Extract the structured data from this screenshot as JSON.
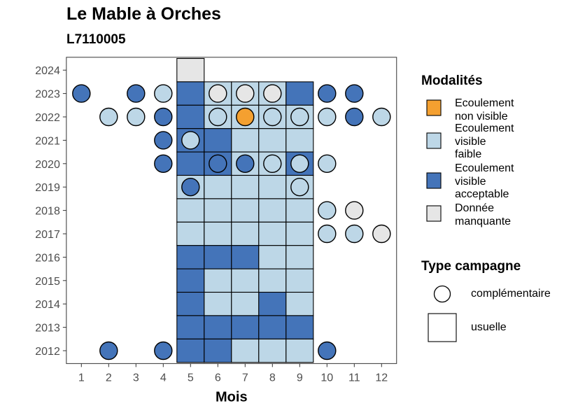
{
  "title": "Le Mable à Orches",
  "subtitle": "L7110005",
  "colors": {
    "non_visible": "#F4A030",
    "faible": "#BDD7E7",
    "acceptable": "#4474B9",
    "manquante": "#E6E6E6",
    "border": "#000000",
    "panel_border": "#333333"
  },
  "chart_data": {
    "type": "heatmap",
    "xlabel": "Mois",
    "ylabel": "",
    "x_ticks": [
      1,
      2,
      3,
      4,
      5,
      6,
      7,
      8,
      9,
      10,
      11,
      12
    ],
    "y_ticks": [
      2012,
      2013,
      2014,
      2015,
      2016,
      2017,
      2018,
      2019,
      2020,
      2021,
      2022,
      2023,
      2024
    ],
    "xlim": [
      0.45,
      12.55
    ],
    "ylim": [
      2011.45,
      2024.55
    ],
    "grid": false,
    "legend_position": "right",
    "legend": {
      "modalites_title": "Modalités",
      "modalites": [
        {
          "key": "non_visible",
          "label_lines": [
            "Ecoulement",
            "non visible"
          ]
        },
        {
          "key": "faible",
          "label_lines": [
            "Ecoulement",
            "visible",
            "faible"
          ]
        },
        {
          "key": "acceptable",
          "label_lines": [
            "Ecoulement",
            "visible",
            "acceptable"
          ]
        },
        {
          "key": "manquante",
          "label_lines": [
            "Donnée",
            "manquante"
          ]
        }
      ],
      "campagne_title": "Type campagne",
      "campagnes": [
        {
          "shape": "circle",
          "label": "complémentaire"
        },
        {
          "shape": "square",
          "label": "usuelle"
        }
      ]
    },
    "usuelle": [
      {
        "year": 2024,
        "month": 5,
        "value": "manquante"
      },
      {
        "year": 2023,
        "month": 5,
        "value": "acceptable"
      },
      {
        "year": 2023,
        "month": 6,
        "value": "faible"
      },
      {
        "year": 2023,
        "month": 7,
        "value": "faible"
      },
      {
        "year": 2023,
        "month": 8,
        "value": "faible"
      },
      {
        "year": 2023,
        "month": 9,
        "value": "acceptable"
      },
      {
        "year": 2022,
        "month": 5,
        "value": "acceptable"
      },
      {
        "year": 2022,
        "month": 6,
        "value": "faible"
      },
      {
        "year": 2022,
        "month": 7,
        "value": "faible"
      },
      {
        "year": 2022,
        "month": 8,
        "value": "faible"
      },
      {
        "year": 2022,
        "month": 9,
        "value": "faible"
      },
      {
        "year": 2021,
        "month": 5,
        "value": "acceptable"
      },
      {
        "year": 2021,
        "month": 6,
        "value": "acceptable"
      },
      {
        "year": 2021,
        "month": 7,
        "value": "faible"
      },
      {
        "year": 2021,
        "month": 8,
        "value": "faible"
      },
      {
        "year": 2021,
        "month": 9,
        "value": "faible"
      },
      {
        "year": 2020,
        "month": 5,
        "value": "acceptable"
      },
      {
        "year": 2020,
        "month": 6,
        "value": "acceptable"
      },
      {
        "year": 2020,
        "month": 7,
        "value": "faible"
      },
      {
        "year": 2020,
        "month": 8,
        "value": "faible"
      },
      {
        "year": 2020,
        "month": 9,
        "value": "acceptable"
      },
      {
        "year": 2019,
        "month": 5,
        "value": "faible"
      },
      {
        "year": 2019,
        "month": 6,
        "value": "faible"
      },
      {
        "year": 2019,
        "month": 7,
        "value": "faible"
      },
      {
        "year": 2019,
        "month": 8,
        "value": "faible"
      },
      {
        "year": 2019,
        "month": 9,
        "value": "faible"
      },
      {
        "year": 2018,
        "month": 5,
        "value": "faible"
      },
      {
        "year": 2018,
        "month": 6,
        "value": "faible"
      },
      {
        "year": 2018,
        "month": 7,
        "value": "faible"
      },
      {
        "year": 2018,
        "month": 8,
        "value": "faible"
      },
      {
        "year": 2018,
        "month": 9,
        "value": "faible"
      },
      {
        "year": 2017,
        "month": 5,
        "value": "faible"
      },
      {
        "year": 2017,
        "month": 6,
        "value": "faible"
      },
      {
        "year": 2017,
        "month": 7,
        "value": "faible"
      },
      {
        "year": 2017,
        "month": 8,
        "value": "faible"
      },
      {
        "year": 2017,
        "month": 9,
        "value": "faible"
      },
      {
        "year": 2016,
        "month": 5,
        "value": "acceptable"
      },
      {
        "year": 2016,
        "month": 6,
        "value": "acceptable"
      },
      {
        "year": 2016,
        "month": 7,
        "value": "acceptable"
      },
      {
        "year": 2016,
        "month": 8,
        "value": "faible"
      },
      {
        "year": 2016,
        "month": 9,
        "value": "faible"
      },
      {
        "year": 2015,
        "month": 5,
        "value": "acceptable"
      },
      {
        "year": 2015,
        "month": 6,
        "value": "faible"
      },
      {
        "year": 2015,
        "month": 7,
        "value": "faible"
      },
      {
        "year": 2015,
        "month": 8,
        "value": "faible"
      },
      {
        "year": 2015,
        "month": 9,
        "value": "faible"
      },
      {
        "year": 2014,
        "month": 5,
        "value": "acceptable"
      },
      {
        "year": 2014,
        "month": 6,
        "value": "faible"
      },
      {
        "year": 2014,
        "month": 7,
        "value": "faible"
      },
      {
        "year": 2014,
        "month": 8,
        "value": "acceptable"
      },
      {
        "year": 2014,
        "month": 9,
        "value": "faible"
      },
      {
        "year": 2013,
        "month": 5,
        "value": "acceptable"
      },
      {
        "year": 2013,
        "month": 6,
        "value": "acceptable"
      },
      {
        "year": 2013,
        "month": 7,
        "value": "acceptable"
      },
      {
        "year": 2013,
        "month": 8,
        "value": "acceptable"
      },
      {
        "year": 2013,
        "month": 9,
        "value": "acceptable"
      },
      {
        "year": 2012,
        "month": 5,
        "value": "acceptable"
      },
      {
        "year": 2012,
        "month": 6,
        "value": "acceptable"
      },
      {
        "year": 2012,
        "month": 7,
        "value": "faible"
      },
      {
        "year": 2012,
        "month": 8,
        "value": "faible"
      },
      {
        "year": 2012,
        "month": 9,
        "value": "faible"
      }
    ],
    "complementaire": [
      {
        "year": 2023,
        "month": 1,
        "value": "acceptable"
      },
      {
        "year": 2023,
        "month": 3,
        "value": "acceptable"
      },
      {
        "year": 2023,
        "month": 4,
        "value": "faible"
      },
      {
        "year": 2023,
        "month": 6,
        "value": "manquante"
      },
      {
        "year": 2023,
        "month": 7,
        "value": "manquante"
      },
      {
        "year": 2023,
        "month": 8,
        "value": "manquante"
      },
      {
        "year": 2023,
        "month": 10,
        "value": "acceptable"
      },
      {
        "year": 2023,
        "month": 11,
        "value": "acceptable"
      },
      {
        "year": 2022,
        "month": 2,
        "value": "faible"
      },
      {
        "year": 2022,
        "month": 3,
        "value": "faible"
      },
      {
        "year": 2022,
        "month": 4,
        "value": "acceptable"
      },
      {
        "year": 2022,
        "month": 6,
        "value": "faible"
      },
      {
        "year": 2022,
        "month": 7,
        "value": "non_visible"
      },
      {
        "year": 2022,
        "month": 8,
        "value": "faible"
      },
      {
        "year": 2022,
        "month": 9,
        "value": "faible"
      },
      {
        "year": 2022,
        "month": 10,
        "value": "faible"
      },
      {
        "year": 2022,
        "month": 11,
        "value": "acceptable"
      },
      {
        "year": 2022,
        "month": 12,
        "value": "faible"
      },
      {
        "year": 2021,
        "month": 4,
        "value": "acceptable"
      },
      {
        "year": 2021,
        "month": 5,
        "value": "faible"
      },
      {
        "year": 2020,
        "month": 4,
        "value": "acceptable"
      },
      {
        "year": 2020,
        "month": 6,
        "value": "acceptable"
      },
      {
        "year": 2020,
        "month": 7,
        "value": "acceptable"
      },
      {
        "year": 2020,
        "month": 8,
        "value": "faible"
      },
      {
        "year": 2020,
        "month": 9,
        "value": "faible"
      },
      {
        "year": 2020,
        "month": 10,
        "value": "faible"
      },
      {
        "year": 2019,
        "month": 5,
        "value": "acceptable"
      },
      {
        "year": 2019,
        "month": 9,
        "value": "faible"
      },
      {
        "year": 2018,
        "month": 10,
        "value": "faible"
      },
      {
        "year": 2018,
        "month": 11,
        "value": "manquante"
      },
      {
        "year": 2017,
        "month": 10,
        "value": "faible"
      },
      {
        "year": 2017,
        "month": 11,
        "value": "faible"
      },
      {
        "year": 2017,
        "month": 12,
        "value": "manquante"
      },
      {
        "year": 2012,
        "month": 2,
        "value": "acceptable"
      },
      {
        "year": 2012,
        "month": 4,
        "value": "acceptable"
      },
      {
        "year": 2012,
        "month": 10,
        "value": "acceptable"
      }
    ]
  }
}
